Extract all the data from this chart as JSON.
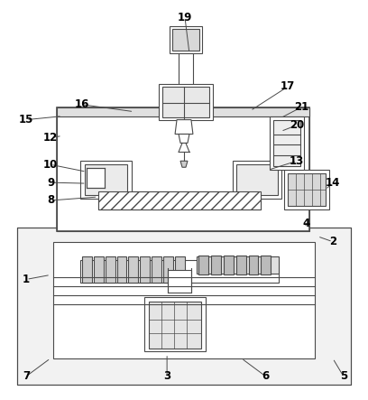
{
  "bg_color": "#ffffff",
  "line_color": "#4a4a4a",
  "label_color": "#000000",
  "figure_size": [
    4.08,
    4.43
  ],
  "dpi": 100,
  "labels_data": [
    [
      "19",
      205,
      18
    ],
    [
      "16",
      90,
      115
    ],
    [
      "17",
      320,
      95
    ],
    [
      "15",
      28,
      132
    ],
    [
      "12",
      55,
      152
    ],
    [
      "21",
      335,
      118
    ],
    [
      "20",
      330,
      138
    ],
    [
      "10",
      55,
      182
    ],
    [
      "9",
      55,
      202
    ],
    [
      "8",
      55,
      222
    ],
    [
      "13",
      330,
      178
    ],
    [
      "14",
      370,
      202
    ],
    [
      "4",
      340,
      248
    ],
    [
      "2",
      370,
      268
    ],
    [
      "1",
      28,
      310
    ],
    [
      "7",
      28,
      418
    ],
    [
      "3",
      185,
      418
    ],
    [
      "6",
      295,
      418
    ],
    [
      "5",
      382,
      418
    ]
  ],
  "leader_lines": [
    [
      205,
      18,
      210,
      58
    ],
    [
      90,
      115,
      148,
      123
    ],
    [
      320,
      95,
      278,
      122
    ],
    [
      28,
      132,
      68,
      128
    ],
    [
      55,
      152,
      68,
      150
    ],
    [
      335,
      118,
      312,
      130
    ],
    [
      330,
      138,
      312,
      145
    ],
    [
      55,
      182,
      95,
      190
    ],
    [
      55,
      202,
      95,
      203
    ],
    [
      55,
      222,
      108,
      218
    ],
    [
      330,
      178,
      298,
      188
    ],
    [
      370,
      202,
      362,
      210
    ],
    [
      340,
      248,
      340,
      250
    ],
    [
      370,
      268,
      353,
      262
    ],
    [
      28,
      310,
      55,
      305
    ],
    [
      28,
      418,
      55,
      398
    ],
    [
      185,
      418,
      185,
      393
    ],
    [
      295,
      418,
      268,
      398
    ],
    [
      382,
      418,
      370,
      398
    ]
  ]
}
